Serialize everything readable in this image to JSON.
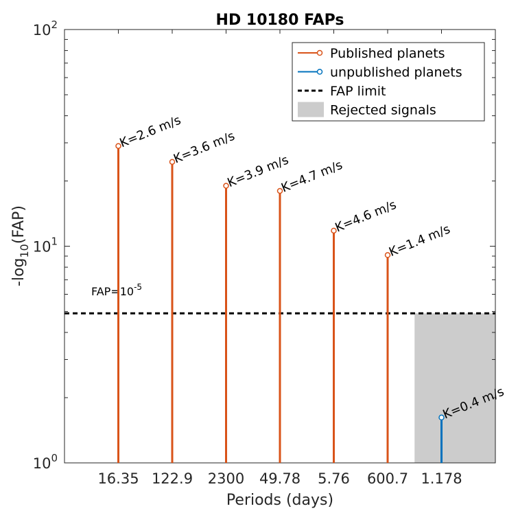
{
  "chart_data": {
    "type": "stem",
    "title": "HD 10180 FAPs",
    "xlabel": "Periods (days)",
    "ylabel": {
      "base": "-log",
      "sub": "10",
      "rest": "(FAP)"
    },
    "yscale": "log",
    "ylim": [
      1,
      100
    ],
    "yticks": [
      {
        "value": 1,
        "base": "10",
        "exp": "0"
      },
      {
        "value": 10,
        "base": "10",
        "exp": "1"
      },
      {
        "value": 100,
        "base": "10",
        "exp": "2"
      }
    ],
    "categories": [
      "16.35",
      "122.9",
      "2300",
      "49.78",
      "5.76",
      "600.7",
      "1.178"
    ],
    "series": [
      {
        "name": "Published planets",
        "color": "#d95319",
        "points": [
          {
            "category": "16.35",
            "value": 29,
            "label": "K=2.6 m/s"
          },
          {
            "category": "122.9",
            "value": 24.5,
            "label": "K=3.6 m/s"
          },
          {
            "category": "2300",
            "value": 19,
            "label": "K=3.9 m/s"
          },
          {
            "category": "49.78",
            "value": 18,
            "label": "K=4.7 m/s"
          },
          {
            "category": "5.76",
            "value": 11.8,
            "label": "K=4.6 m/s"
          },
          {
            "category": "600.7",
            "value": 9.1,
            "label": "K=1.4 m/s"
          }
        ]
      },
      {
        "name": "unpublished planets",
        "color": "#0072bd",
        "points": [
          {
            "category": "1.178",
            "value": 1.62,
            "label": "K=0.4 m/s"
          }
        ]
      }
    ],
    "fap_limit": {
      "name": "FAP limit",
      "value": 4.9,
      "color": "#000000"
    },
    "fap_annotation": {
      "base": "FAP=10",
      "exp": "-5"
    },
    "rejected_region": {
      "name": "Rejected signals",
      "x_from_category_index": 5.5,
      "y_to": 4.9,
      "color": "#cccccc"
    },
    "legend": {
      "position": "top-right"
    }
  }
}
